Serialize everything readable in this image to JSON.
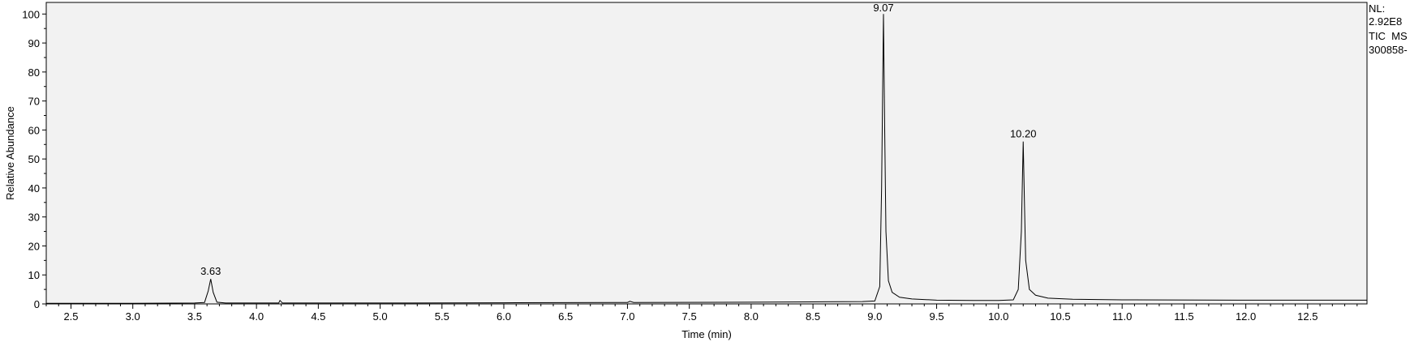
{
  "info": {
    "nl_label": "NL:",
    "nl_value": "2.92E8",
    "trace_label": "TIC  MS",
    "file_id": "300858-"
  },
  "chart_data": {
    "type": "line",
    "title": "",
    "xlabel": "Time (min)",
    "ylabel": "Relative Abundance",
    "xlim": [
      2.3,
      12.98
    ],
    "ylim": [
      0,
      104
    ],
    "grid": false,
    "x_ticks": [
      "2.5",
      "3.0",
      "3.5",
      "4.0",
      "4.5",
      "5.0",
      "5.5",
      "6.0",
      "6.5",
      "7.0",
      "7.5",
      "8.0",
      "8.5",
      "9.0",
      "9.5",
      "10.0",
      "10.5",
      "11.0",
      "11.5",
      "12.0",
      "12.5"
    ],
    "y_ticks": [
      "0",
      "10",
      "20",
      "30",
      "40",
      "50",
      "60",
      "70",
      "80",
      "90",
      "100"
    ],
    "x": [
      2.3,
      2.5,
      3.0,
      3.5,
      3.58,
      3.61,
      3.63,
      3.65,
      3.68,
      3.75,
      4.0,
      4.18,
      4.19,
      4.21,
      5.0,
      6.0,
      7.0,
      7.02,
      7.05,
      8.0,
      8.5,
      8.9,
      9.0,
      9.04,
      9.055,
      9.07,
      9.08,
      9.09,
      9.11,
      9.14,
      9.2,
      9.3,
      9.5,
      9.8,
      10.0,
      10.12,
      10.16,
      10.185,
      10.2,
      10.21,
      10.22,
      10.25,
      10.3,
      10.4,
      10.6,
      11.0,
      12.0,
      12.98
    ],
    "y": [
      0.2,
      0.2,
      0.2,
      0.3,
      0.5,
      4.5,
      8.6,
      4.0,
      0.6,
      0.3,
      0.3,
      0.3,
      1.2,
      0.3,
      0.3,
      0.4,
      0.5,
      0.9,
      0.5,
      0.6,
      0.7,
      0.8,
      1.0,
      6.0,
      40.0,
      100.0,
      60.0,
      25.0,
      8.0,
      4.0,
      2.3,
      1.7,
      1.3,
      1.2,
      1.2,
      1.4,
      5.0,
      25.0,
      56.0,
      35.0,
      15.0,
      5.0,
      3.0,
      2.0,
      1.6,
      1.4,
      1.3,
      1.3
    ],
    "peaks": [
      {
        "x": 3.63,
        "y": 8.6,
        "label": "3.63"
      },
      {
        "x": 9.07,
        "y": 100.0,
        "label": "9.07"
      },
      {
        "x": 10.2,
        "y": 56.0,
        "label": "10.20"
      }
    ],
    "line_color": "#000000",
    "plot_background": "#f2f2f2"
  }
}
